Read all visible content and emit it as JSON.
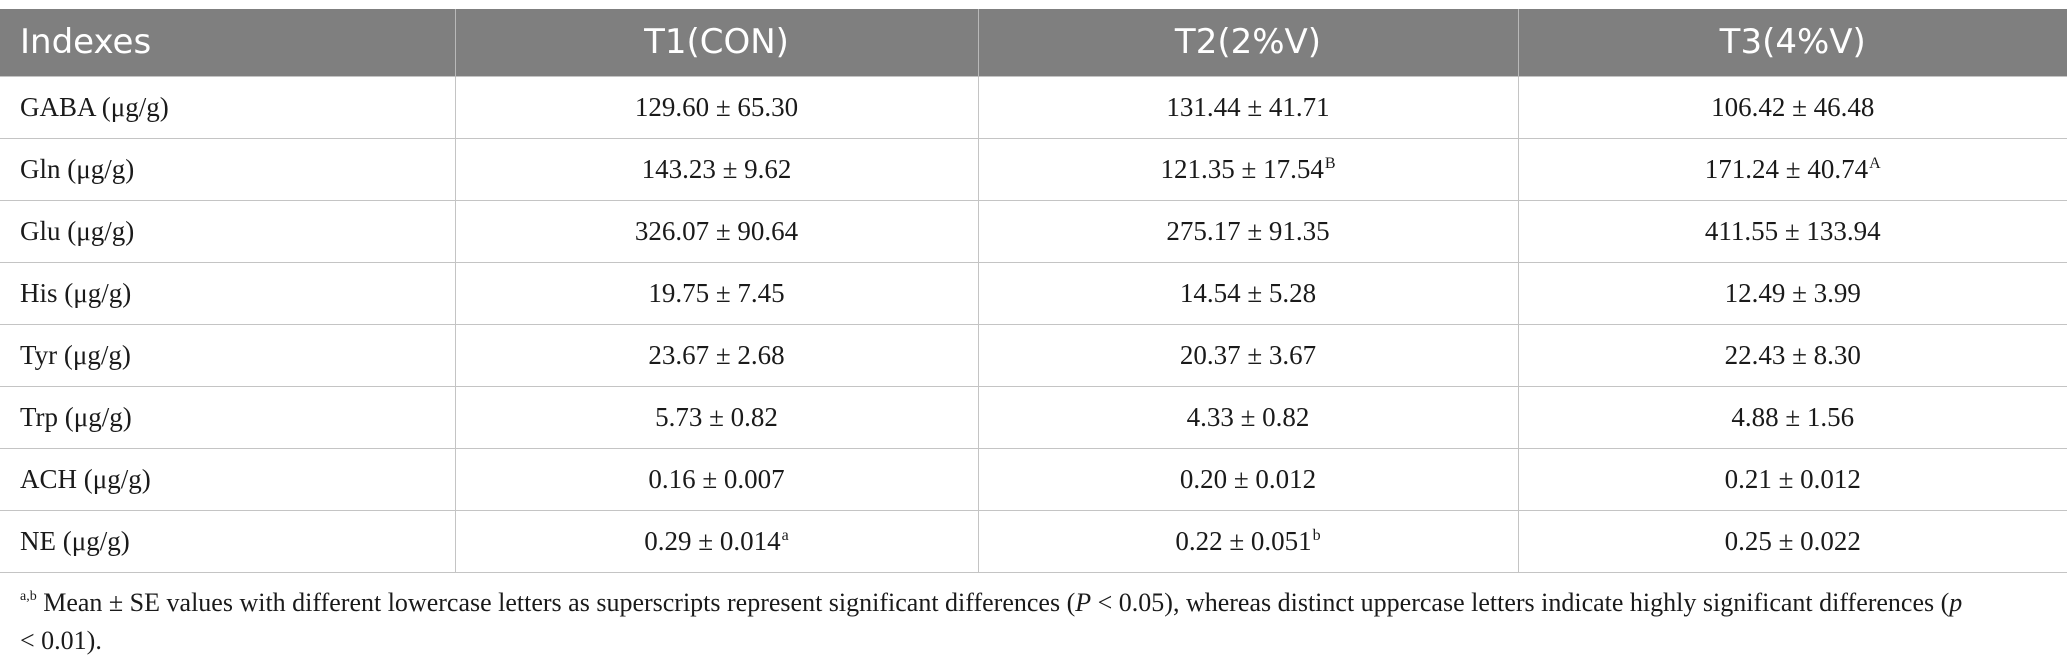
{
  "table": {
    "headers": [
      "Indexes",
      "T1(CON)",
      "T2(2%V)",
      "T3(4%V)"
    ],
    "rows": [
      {
        "index": "GABA (μg/g)",
        "t1": "129.60 ± 65.30",
        "t1_sup": "",
        "t2": "131.44 ± 41.71",
        "t2_sup": "",
        "t3": "106.42 ± 46.48",
        "t3_sup": ""
      },
      {
        "index": "Gln (μg/g)",
        "t1": "143.23 ± 9.62",
        "t1_sup": "",
        "t2": "121.35 ± 17.54",
        "t2_sup": "B",
        "t3": "171.24 ± 40.74",
        "t3_sup": "A"
      },
      {
        "index": "Glu (μg/g)",
        "t1": "326.07 ± 90.64",
        "t1_sup": "",
        "t2": "275.17 ± 91.35",
        "t2_sup": "",
        "t3": "411.55 ± 133.94",
        "t3_sup": ""
      },
      {
        "index": "His (μg/g)",
        "t1": "19.75 ± 7.45",
        "t1_sup": "",
        "t2": "14.54 ± 5.28",
        "t2_sup": "",
        "t3": "12.49 ± 3.99",
        "t3_sup": ""
      },
      {
        "index": "Tyr (μg/g)",
        "t1": "23.67 ± 2.68",
        "t1_sup": "",
        "t2": "20.37 ± 3.67",
        "t2_sup": "",
        "t3": "22.43 ± 8.30",
        "t3_sup": ""
      },
      {
        "index": "Trp (μg/g)",
        "t1": "5.73 ± 0.82",
        "t1_sup": "",
        "t2": "4.33 ± 0.82",
        "t2_sup": "",
        "t3": "4.88 ± 1.56",
        "t3_sup": ""
      },
      {
        "index": "ACH (μg/g)",
        "t1": "0.16 ± 0.007",
        "t1_sup": "",
        "t2": "0.20 ± 0.012",
        "t2_sup": "",
        "t3": "0.21 ± 0.012",
        "t3_sup": ""
      },
      {
        "index": "NE (μg/g)",
        "t1": "0.29 ± 0.014",
        "t1_sup": "a",
        "t2": "0.22 ± 0.051",
        "t2_sup": "b",
        "t3": "0.25 ± 0.022",
        "t3_sup": ""
      }
    ]
  },
  "footnote": {
    "marker": "a,b",
    "text_part1": " Mean ± SE values with different lowercase letters as superscripts represent significant differences (",
    "p_var_1": "P",
    "text_part2": " < 0.05), whereas distinct uppercase letters indicate highly significant differences (",
    "p_var_2": "p",
    "text_part3": " < 0.01)."
  }
}
